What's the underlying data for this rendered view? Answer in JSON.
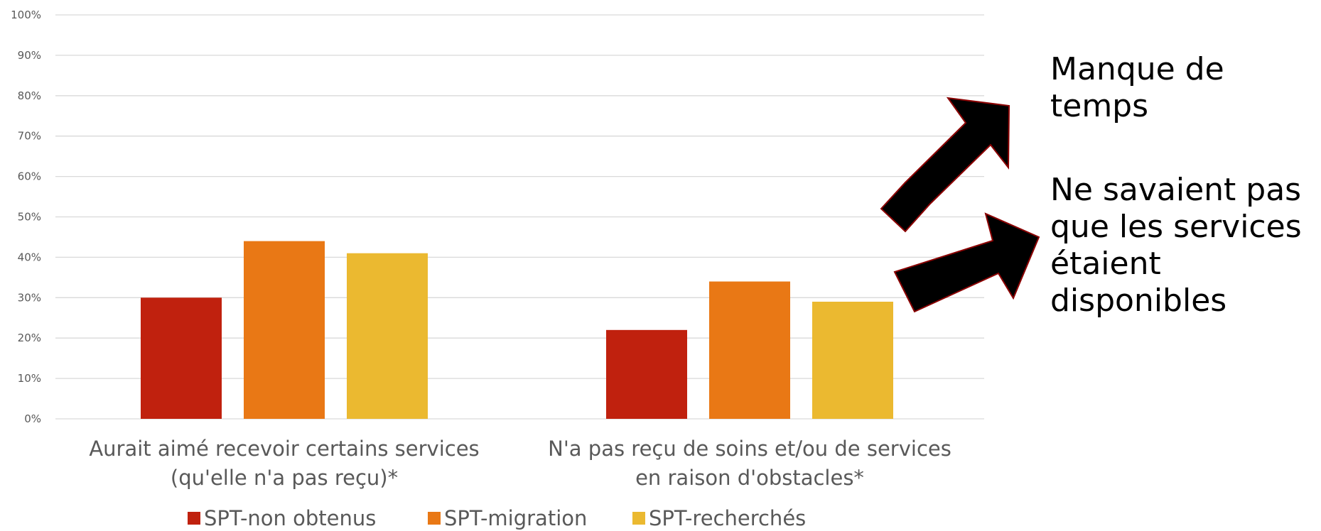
{
  "chart_data": {
    "type": "bar",
    "categories": [
      [
        "Aurait aimé recevoir certains services",
        "(qu'elle n'a pas reçu)*"
      ],
      [
        "N'a pas reçu de soins et/ou de services",
        "en raison d'obstacles*"
      ]
    ],
    "series": [
      {
        "name": "SPT-non obtenus",
        "color": "#C0210E",
        "values": [
          30,
          22
        ]
      },
      {
        "name": "SPT-migration",
        "color": "#E97815",
        "values": [
          44,
          34
        ]
      },
      {
        "name": "SPT-recherchés",
        "color": "#EBB930",
        "values": [
          41,
          29
        ]
      }
    ],
    "ylim": [
      0,
      100
    ],
    "yticks": [
      "0%",
      "10%",
      "20%",
      "30%",
      "40%",
      "50%",
      "60%",
      "70%",
      "80%",
      "90%",
      "100%"
    ],
    "grid": true,
    "legend": "bottom-center",
    "annotations": [
      {
        "lines": [
          "Manque de",
          "temps"
        ]
      },
      {
        "lines": [
          "Ne savaient pas",
          "que les services",
          "étaient",
          "disponibles"
        ]
      }
    ]
  }
}
